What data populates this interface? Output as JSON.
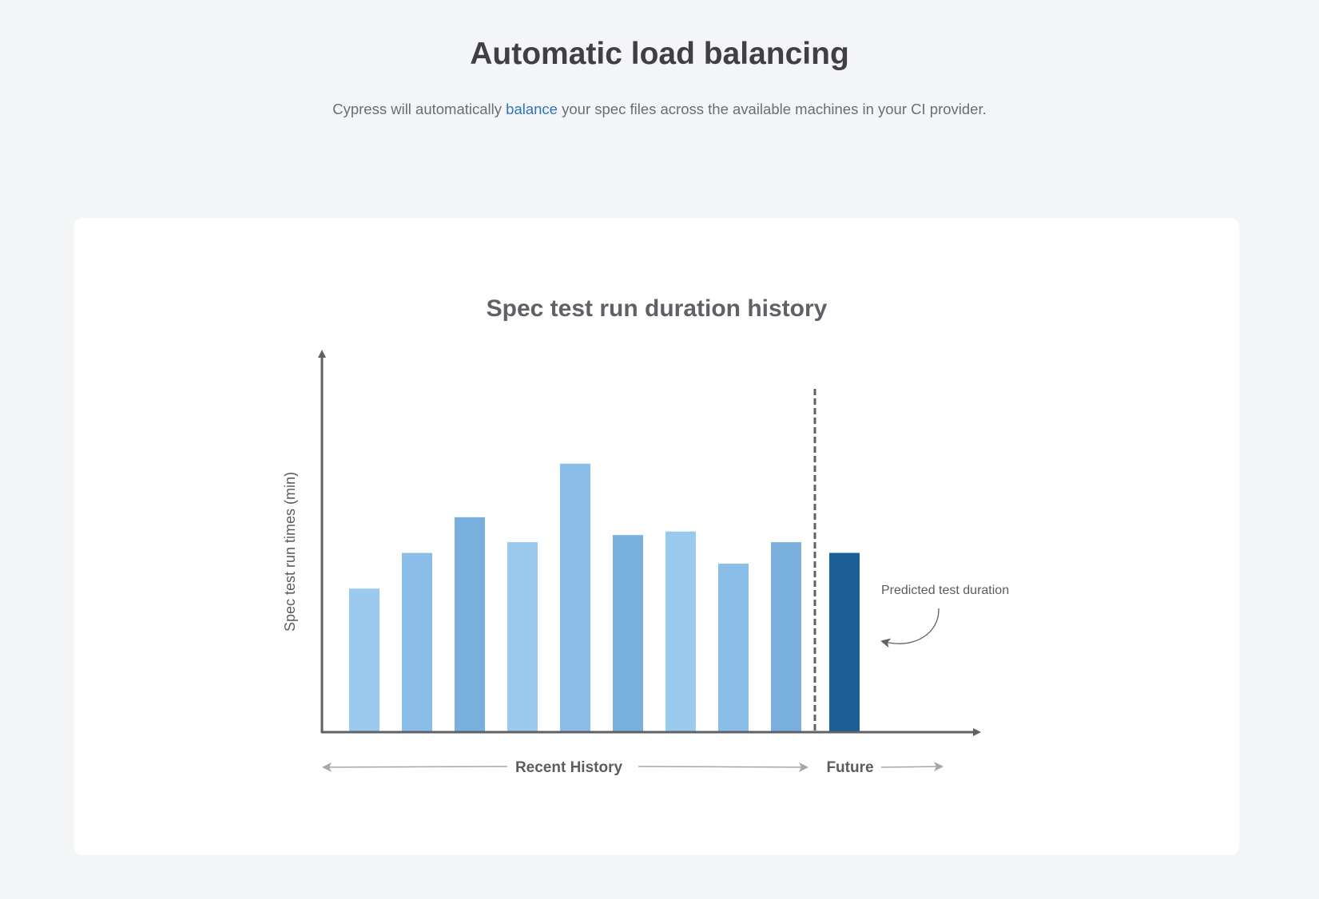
{
  "header": {
    "title": "Automatic load balancing",
    "subtitle_before": "Cypress will automatically ",
    "subtitle_link": "balance",
    "subtitle_after": " your spec files across the available machines in your CI provider."
  },
  "chart_data": {
    "type": "bar",
    "title": "Spec test run duration history",
    "ylabel": "Spec test run times (min)",
    "xlabel": "",
    "ylim": [
      0,
      10
    ],
    "grid": false,
    "legend": "none",
    "values": [
      4.0,
      5.0,
      6.0,
      5.3,
      7.5,
      5.5,
      5.6,
      4.7,
      5.3,
      5.0
    ],
    "colors": [
      "#9ac9f0",
      "#8abde8",
      "#79b0de",
      "#9ac9f0",
      "#8abde8",
      "#79b0de",
      "#9ac9f0",
      "#8abde8",
      "#79b0de",
      "#1b5f96"
    ],
    "predicted_index": 9,
    "periods": {
      "history": "Recent History",
      "future": "Future"
    },
    "annotation": "Predicted test duration"
  }
}
